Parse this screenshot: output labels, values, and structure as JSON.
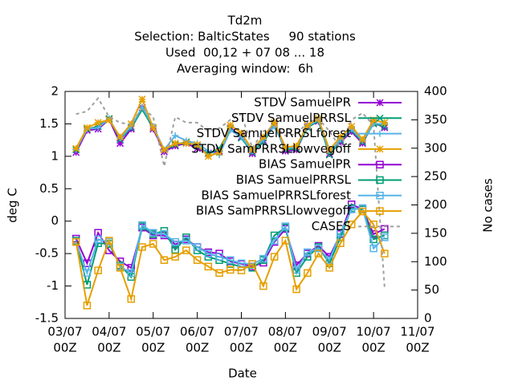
{
  "chart_data": {
    "type": "line",
    "title": [
      "Td2m",
      "Selection: BalticStates     90 stations",
      "Used  00,12 + 07 08 ... 18",
      "Averaging window:  6h"
    ],
    "xlabel": "Date",
    "ylabel": "deg C",
    "y2label": "No cases",
    "x": [
      6,
      12,
      18,
      24,
      30,
      36,
      42,
      48,
      54,
      60,
      66,
      72,
      78,
      84,
      90,
      96,
      102,
      108,
      114,
      120,
      126,
      132,
      138,
      144,
      150,
      156,
      162,
      168,
      174
    ],
    "xlim": [
      0,
      192
    ],
    "xticks": [
      {
        "value": 0,
        "label": [
          "03/07",
          "00Z"
        ]
      },
      {
        "value": 24,
        "label": [
          "04/07",
          "00Z"
        ]
      },
      {
        "value": 48,
        "label": [
          "05/07",
          "00Z"
        ]
      },
      {
        "value": 72,
        "label": [
          "06/07",
          "00Z"
        ]
      },
      {
        "value": 96,
        "label": [
          "07/07",
          "00Z"
        ]
      },
      {
        "value": 120,
        "label": [
          "08/07",
          "00Z"
        ]
      },
      {
        "value": 144,
        "label": [
          "09/07",
          "00Z"
        ]
      },
      {
        "value": 168,
        "label": [
          "10/07",
          "00Z"
        ]
      },
      {
        "value": 192,
        "label": [
          "11/07",
          "00Z"
        ]
      }
    ],
    "ylim": [
      -1.5,
      2
    ],
    "yticks": [
      -1.5,
      -1,
      -0.5,
      0,
      0.5,
      1,
      1.5,
      2
    ],
    "y2lim": [
      0,
      400
    ],
    "y2ticks": [
      0,
      50,
      100,
      150,
      200,
      250,
      300,
      350,
      400
    ],
    "series": [
      {
        "name": "STDV SamuelPR",
        "color": "#9400d3",
        "marker": "star",
        "values": [
          1.06,
          1.4,
          1.42,
          1.57,
          1.2,
          1.42,
          1.75,
          1.42,
          1.07,
          1.16,
          1.2,
          1.12,
          1.05,
          1.08,
          1.44,
          1.3,
          1.04,
          1.24,
          1.5,
          1.08,
          1.1,
          1.45,
          1.54,
          1.04,
          1.22,
          1.38,
          1.2,
          1.52,
          1.44
        ]
      },
      {
        "name": "STDV SamuelPRRSL",
        "color": "#009e73",
        "marker": "cross",
        "values": [
          1.1,
          1.42,
          1.46,
          1.58,
          1.26,
          1.44,
          1.72,
          1.44,
          1.1,
          1.18,
          1.22,
          1.16,
          1.04,
          1.12,
          1.42,
          1.28,
          1.06,
          1.22,
          1.48,
          1.1,
          1.12,
          1.44,
          1.55,
          1.02,
          1.24,
          1.4,
          1.22,
          1.5,
          1.46
        ]
      },
      {
        "name": "STDV SamuelPRRSLforest",
        "color": "#56b4e9",
        "marker": "plus",
        "values": [
          1.1,
          1.42,
          1.44,
          1.58,
          1.28,
          1.46,
          1.76,
          1.46,
          1.1,
          1.32,
          1.24,
          1.2,
          1.08,
          1.02,
          1.4,
          1.3,
          1.08,
          1.26,
          1.46,
          1.12,
          1.14,
          1.46,
          1.56,
          1.06,
          1.26,
          1.42,
          1.24,
          1.5,
          1.5
        ]
      },
      {
        "name": "STDV SamPRRSLlowvegoff",
        "color": "#e69f00",
        "marker": "star",
        "values": [
          1.12,
          1.44,
          1.52,
          1.56,
          1.3,
          1.5,
          1.88,
          1.44,
          1.1,
          1.2,
          1.2,
          1.18,
          1.0,
          1.06,
          1.48,
          1.36,
          1.1,
          1.3,
          1.52,
          1.14,
          1.16,
          1.48,
          1.58,
          1.1,
          1.3,
          1.46,
          1.26,
          1.56,
          1.52
        ]
      },
      {
        "name": "BIAS SamuelPR",
        "color": "#9400d3",
        "marker": "square",
        "values": [
          -0.27,
          -0.65,
          -0.18,
          -0.45,
          -0.62,
          -0.72,
          -0.1,
          -0.22,
          -0.22,
          -0.36,
          -0.28,
          -0.4,
          -0.48,
          -0.5,
          -0.62,
          -0.66,
          -0.7,
          -0.64,
          -0.32,
          -0.12,
          -0.68,
          -0.5,
          -0.38,
          -0.55,
          -0.2,
          0.26,
          0.18,
          -0.2,
          -0.12
        ]
      },
      {
        "name": "BIAS SamuelPRRSL",
        "color": "#009e73",
        "marker": "square",
        "values": [
          -0.3,
          -0.98,
          -0.34,
          -0.35,
          -0.68,
          -0.86,
          -0.08,
          -0.2,
          -0.15,
          -0.44,
          -0.25,
          -0.45,
          -0.55,
          -0.6,
          -0.66,
          -0.7,
          -0.72,
          -0.6,
          -0.22,
          -0.1,
          -0.8,
          -0.55,
          -0.4,
          -0.65,
          -0.25,
          0.2,
          0.18,
          -0.28,
          -0.22
        ]
      },
      {
        "name": "BIAS SamuelPRRSLforest",
        "color": "#56b4e9",
        "marker": "square",
        "values": [
          -0.32,
          -0.8,
          -0.28,
          -0.32,
          -0.7,
          -0.8,
          -0.06,
          -0.18,
          -0.2,
          -0.32,
          -0.3,
          -0.4,
          -0.5,
          -0.55,
          -0.6,
          -0.65,
          -0.66,
          -0.58,
          -0.3,
          -0.08,
          -0.75,
          -0.48,
          -0.42,
          -0.6,
          -0.18,
          0.18,
          0.2,
          -0.42,
          -0.25
        ]
      },
      {
        "name": "BIAS SamPRRSLlowvegoff",
        "color": "#e69f00",
        "marker": "square",
        "values": [
          -0.32,
          -1.3,
          -0.76,
          -0.3,
          -0.72,
          -1.2,
          -0.4,
          -0.35,
          -0.6,
          -0.55,
          -0.45,
          -0.6,
          -0.7,
          -0.8,
          -0.75,
          -0.76,
          -0.66,
          -1.0,
          -0.55,
          -0.3,
          -1.05,
          -0.8,
          -0.5,
          -0.72,
          -0.34,
          -0.05,
          0.15,
          -0.05,
          -0.5
        ]
      },
      {
        "name": "CASES",
        "color": "#a0a0a0",
        "marker": "none",
        "dashed": true,
        "axis": "y2",
        "values": [
          360,
          365,
          388,
          355,
          345,
          342,
          372,
          355,
          268,
          355,
          345,
          345,
          330,
          335,
          350,
          360,
          300,
          330,
          338,
          322,
          325,
          345,
          352,
          330,
          300,
          350,
          362,
          340,
          55
        ]
      }
    ],
    "legend": "top-right"
  }
}
